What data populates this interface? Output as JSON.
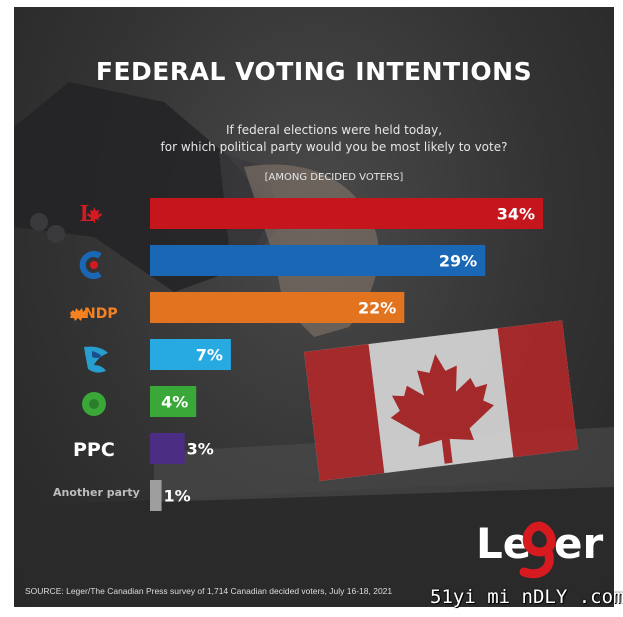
{
  "title": "FEDERAL VOTING INTENTIONS",
  "question_line1": "If federal elections were held today,",
  "question_line2": "for which political party would you be most likely to vote?",
  "note": "[AMONG DECIDED VOTERS]",
  "source": "SOURCE: Leger/The Canadian Press survey of 1,714 Canadian decided voters, July 16-18, 2021",
  "logo_text": "Leger",
  "watermark": "51yi mi nDLY .com",
  "chart_data": {
    "type": "bar",
    "orientation": "horizontal",
    "categories": [
      "Liberal",
      "Conservative",
      "NDP",
      "Bloc Québécois",
      "Green",
      "PPC",
      "Another party"
    ],
    "category_labels_printed": [
      "",
      "",
      "NDP",
      "",
      "",
      "PPC",
      "Another party"
    ],
    "values": [
      34,
      29,
      22,
      7,
      4,
      3,
      1
    ],
    "value_labels": [
      "34%",
      "29%",
      "22%",
      "7%",
      "4%",
      "3%",
      "1%"
    ],
    "colors": [
      "#c4161c",
      "#1a67b6",
      "#e2731f",
      "#27a9e1",
      "#3aa838",
      "#4b2e83",
      "#9e9e9e"
    ],
    "xlim": [
      0,
      34
    ]
  }
}
